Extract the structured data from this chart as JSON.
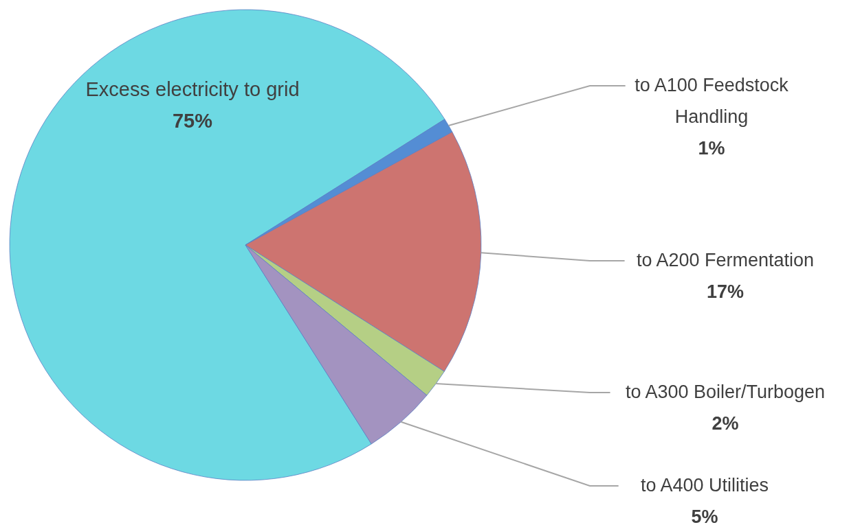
{
  "chart_data": {
    "type": "pie",
    "categories": [
      "Excess electricity to grid",
      "to A100 Feedstock Handling",
      "to A200 Fermentation",
      "to A300 Boiler/Turbogen",
      "to A400 Utilities"
    ],
    "values": [
      75,
      1,
      17,
      2,
      5
    ],
    "colors": [
      "#6dd9e3",
      "#548dd4",
      "#cd7470",
      "#b5cf85",
      "#a393c0"
    ],
    "value_labels": [
      "75%",
      "1%",
      "17%",
      "2%",
      "5%"
    ]
  }
}
